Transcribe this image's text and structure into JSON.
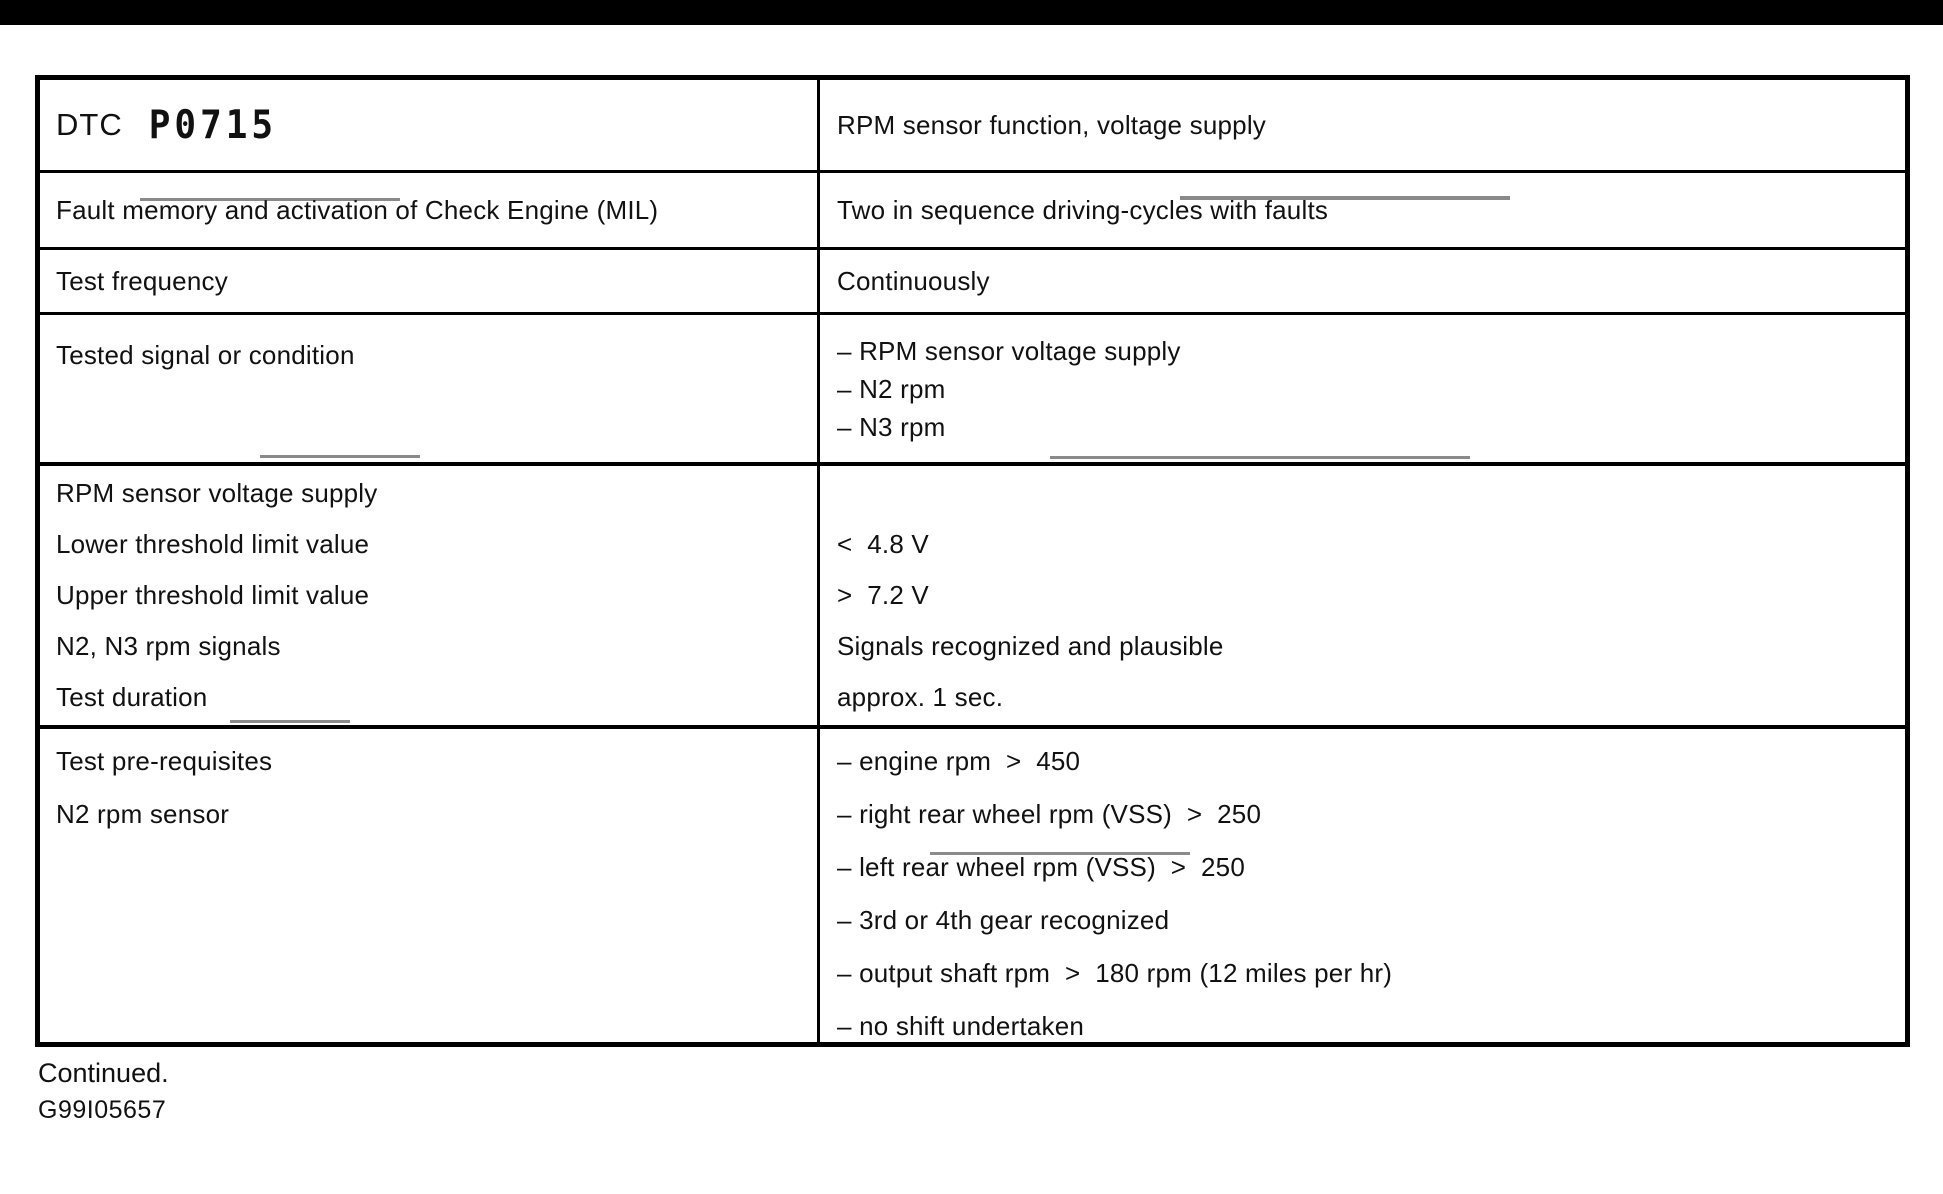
{
  "page": {
    "continued": "Continued.",
    "figure_code": "G99I05657",
    "top_bar_color": "#000000",
    "text_color": "#111111",
    "border_color": "#000000"
  },
  "table": {
    "row1": {
      "left_label": "DTC",
      "left_code": "P0715",
      "right": "RPM sensor function, voltage supply"
    },
    "row2": {
      "left": "Fault memory and activation of Check Engine (MIL)",
      "right": "Two in sequence driving-cycles with faults"
    },
    "row3": {
      "left": "Test frequency",
      "right": "Continuously"
    },
    "row4": {
      "left": "Tested signal or condition",
      "right_lines": [
        "– RPM sensor voltage supply",
        "– N2 rpm",
        "– N3 rpm"
      ]
    },
    "row5": {
      "left_lines": [
        "RPM sensor voltage supply",
        "Lower threshold limit value",
        "Upper threshold limit value",
        "N2, N3 rpm signals",
        "Test duration"
      ],
      "right_lines": [
        "",
        "<  4.8 V",
        ">  7.2 V",
        "Signals recognized and plausible",
        "approx. 1 sec."
      ]
    },
    "row6": {
      "left_lines": [
        "Test pre-requisites",
        "N2 rpm sensor"
      ],
      "right_lines": [
        "– engine rpm  >  450",
        "– right rear wheel rpm (VSS)  >  250",
        "– left rear wheel rpm (VSS)  >  250",
        "– 3rd or 4th gear recognized",
        "– output shaft rpm  >  180 rpm (12 miles per hr)",
        "– no shift undertaken"
      ]
    }
  }
}
